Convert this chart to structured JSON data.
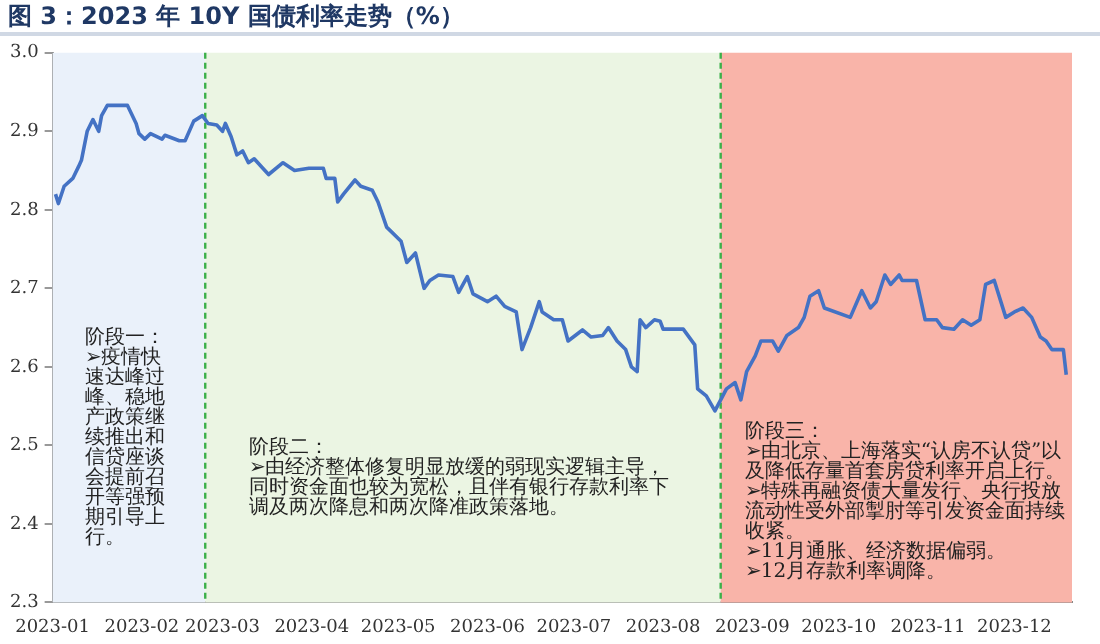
{
  "chart_data": {
    "type": "line",
    "title": "图 3：2023 年 10Y 国债利率走势（%）",
    "x": [
      "2023-01-02",
      "2023-01-03",
      "2023-01-05",
      "2023-01-08",
      "2023-01-10",
      "2023-01-11",
      "2023-01-13",
      "2023-01-15",
      "2023-01-17",
      "2023-01-18",
      "2023-01-20",
      "2023-01-27",
      "2023-01-30",
      "2023-01-31",
      "2023-02-02",
      "2023-02-04",
      "2023-02-08",
      "2023-02-09",
      "2023-02-14",
      "2023-02-16",
      "2023-02-19",
      "2023-02-22",
      "2023-02-24",
      "2023-02-27",
      "2023-03-01",
      "2023-03-02",
      "2023-03-04",
      "2023-03-06",
      "2023-03-08",
      "2023-03-10",
      "2023-03-12",
      "2023-03-15",
      "2023-03-17",
      "2023-03-22",
      "2023-03-26",
      "2023-03-31",
      "2023-04-05",
      "2023-04-06",
      "2023-04-09",
      "2023-04-10",
      "2023-04-12",
      "2023-04-16",
      "2023-04-18",
      "2023-04-22",
      "2023-04-24",
      "2023-04-27",
      "2023-05-02",
      "2023-05-04",
      "2023-05-07",
      "2023-05-10",
      "2023-05-12",
      "2023-05-15",
      "2023-05-20",
      "2023-05-22",
      "2023-05-25",
      "2023-05-27",
      "2023-06-01",
      "2023-06-04",
      "2023-06-07",
      "2023-06-11",
      "2023-06-13",
      "2023-06-16",
      "2023-06-19",
      "2023-06-20",
      "2023-06-24",
      "2023-06-27",
      "2023-06-29",
      "2023-07-04",
      "2023-07-07",
      "2023-07-11",
      "2023-07-13",
      "2023-07-16",
      "2023-07-19",
      "2023-07-21",
      "2023-07-23",
      "2023-07-24",
      "2023-07-26",
      "2023-07-29",
      "2023-07-31",
      "2023-08-01",
      "2023-08-08",
      "2023-08-12",
      "2023-08-13",
      "2023-08-16",
      "2023-08-19",
      "2023-08-21",
      "2023-08-23",
      "2023-08-26",
      "2023-08-28",
      "2023-08-30",
      "2023-09-02",
      "2023-09-04",
      "2023-09-08",
      "2023-09-10",
      "2023-09-13",
      "2023-09-17",
      "2023-09-19",
      "2023-09-21",
      "2023-09-24",
      "2023-09-26",
      "2023-10-05",
      "2023-10-09",
      "2023-10-12",
      "2023-10-14",
      "2023-10-17",
      "2023-10-19",
      "2023-10-22",
      "2023-10-23",
      "2023-10-28",
      "2023-10-31",
      "2023-11-04",
      "2023-11-06",
      "2023-11-10",
      "2023-11-13",
      "2023-11-16",
      "2023-11-19",
      "2023-11-21",
      "2023-11-24",
      "2023-11-28",
      "2023-12-01",
      "2023-12-04",
      "2023-12-07",
      "2023-12-10",
      "2023-12-12",
      "2023-12-14",
      "2023-12-18",
      "2023-12-19"
    ],
    "series": [
      {
        "color": "#4472c4",
        "values": [
          2.82,
          2.808,
          2.83,
          2.84,
          2.855,
          2.863,
          2.9,
          2.915,
          2.9,
          2.92,
          2.933,
          2.933,
          2.91,
          2.897,
          2.89,
          2.897,
          2.89,
          2.895,
          2.888,
          2.888,
          2.913,
          2.92,
          2.91,
          2.908,
          2.9,
          2.91,
          2.893,
          2.87,
          2.875,
          2.86,
          2.865,
          2.853,
          2.845,
          2.86,
          2.85,
          2.853,
          2.853,
          2.84,
          2.84,
          2.81,
          2.82,
          2.838,
          2.83,
          2.825,
          2.81,
          2.778,
          2.76,
          2.733,
          2.745,
          2.7,
          2.71,
          2.717,
          2.715,
          2.695,
          2.715,
          2.693,
          2.683,
          2.69,
          2.677,
          2.67,
          2.622,
          2.65,
          2.683,
          2.67,
          2.66,
          2.66,
          2.633,
          2.647,
          2.638,
          2.64,
          2.65,
          2.633,
          2.622,
          2.6,
          2.594,
          2.66,
          2.65,
          2.66,
          2.658,
          2.648,
          2.648,
          2.628,
          2.572,
          2.563,
          2.544,
          2.558,
          2.572,
          2.58,
          2.558,
          2.594,
          2.614,
          2.633,
          2.633,
          2.62,
          2.64,
          2.65,
          2.663,
          2.69,
          2.697,
          2.675,
          2.663,
          2.697,
          2.675,
          2.683,
          2.717,
          2.705,
          2.717,
          2.71,
          2.71,
          2.66,
          2.66,
          2.65,
          2.648,
          2.66,
          2.653,
          2.66,
          2.705,
          2.71,
          2.663,
          2.67,
          2.675,
          2.663,
          2.638,
          2.633,
          2.622,
          2.622,
          2.59
        ]
      }
    ],
    "xlim": [
      "2023-01-01",
      "2023-12-21"
    ],
    "xticks": [
      {
        "value": "2023-01-01",
        "label": "2023-01"
      },
      {
        "value": "2023-02-01",
        "label": "2023-02"
      },
      {
        "value": "2023-03-01",
        "label": "2023-03"
      },
      {
        "value": "2023-04-01",
        "label": "2023-04"
      },
      {
        "value": "2023-05-01",
        "label": "2023-05"
      },
      {
        "value": "2023-06-01",
        "label": "2023-06"
      },
      {
        "value": "2023-07-01",
        "label": "2023-07"
      },
      {
        "value": "2023-08-01",
        "label": "2023-08"
      },
      {
        "value": "2023-09-01",
        "label": "2023-09"
      },
      {
        "value": "2023-10-01",
        "label": "2023-10"
      },
      {
        "value": "2023-11-01",
        "label": "2023-11"
      },
      {
        "value": "2023-12-01",
        "label": "2023-12"
      }
    ],
    "ylim": [
      2.3,
      3.0
    ],
    "yticks": [
      2.3,
      2.4,
      2.5,
      2.6,
      2.7,
      2.8,
      2.9,
      {
        "value": 3.0,
        "label": "3.0"
      }
    ],
    "bands": [
      {
        "axis": "x",
        "from": "2023-01-01",
        "to": "2023-02-23",
        "color": "#eaf1fa",
        "label": "阶段一：\n➢疫情快速达峰过峰、稳地产政策继续推出和信贷座谈会提前召开等强预期引导上行。"
      },
      {
        "axis": "x",
        "from": "2023-02-23",
        "to": "2023-08-21",
        "color": "#ebf5e3",
        "label": "阶段二：\n➢由经济整体修复明显放缓的弱现实逻辑主导，同时资金面也较为宽松，且伴有银行存款利率下调及两次降息和两次降准政策落地。"
      },
      {
        "axis": "x",
        "from": "2023-08-21",
        "to": "2023-12-21",
        "color": "#f9b4a9",
        "label": "阶段三：\n➢由北京、上海落实“认房不认贷”以及降低存量首套房贷利率开启上行。\n➢特殊再融资债大量发行、央行投放流动性受外部掣肘等引发资金面持续收紧。\n➢11月通胀、经济数据偏弱。\n➢12月存款利率调降。"
      }
    ],
    "ref_lines": [
      {
        "axis": "x",
        "value": "2023-02-23",
        "color": "#3cb04a",
        "line_style": "dashed"
      },
      {
        "axis": "x",
        "value": "2023-08-21",
        "color": "#3cb04a",
        "line_style": "dashed"
      }
    ],
    "grid": false,
    "legend": false
  }
}
